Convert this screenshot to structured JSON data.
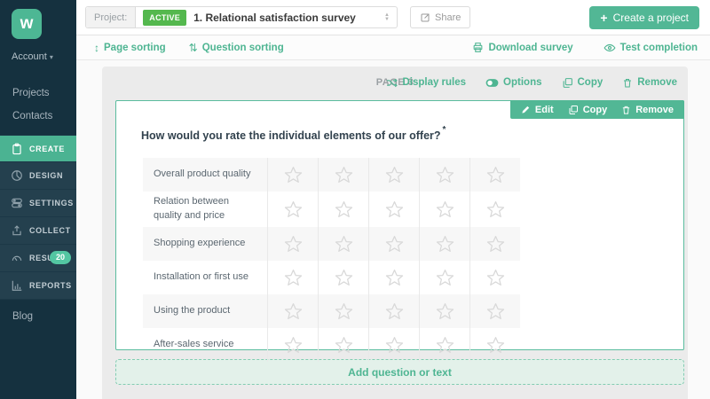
{
  "app": {
    "logo_letter": "w"
  },
  "sidebar": {
    "account_label": "Account",
    "plain_top": [
      {
        "label": "Projects"
      },
      {
        "label": "Contacts"
      }
    ],
    "menu_items": [
      {
        "label": "CREATE",
        "icon": "clipboard-icon",
        "active": true
      },
      {
        "label": "DESIGN",
        "icon": "palette-icon"
      },
      {
        "label": "SETTINGS",
        "icon": "toggles-icon"
      },
      {
        "label": "COLLECT",
        "icon": "upload-icon"
      },
      {
        "label": "RESULTS",
        "icon": "gauge-icon",
        "badge": "20"
      },
      {
        "label": "REPORTS",
        "icon": "bar-chart-icon"
      }
    ],
    "plain_bottom": [
      {
        "label": "Blog"
      }
    ]
  },
  "topbar": {
    "project_label": "Project:",
    "status_badge": "ACTIVE",
    "project_title": "1. Relational satisfaction survey",
    "share_label": "Share",
    "create_project_label": "Create a project",
    "create_project_plus": "+"
  },
  "toolbar": {
    "page_sorting": "Page sorting",
    "question_sorting": "Question sorting",
    "download_survey": "Download survey",
    "test_completion": "Test completion",
    "page_sort_glyph": "↕",
    "question_sort_glyph": "⇅"
  },
  "page": {
    "header": "PAGE 3",
    "actions": {
      "display_rules": "Display rules",
      "options": "Options",
      "copy": "Copy",
      "remove": "Remove"
    }
  },
  "question": {
    "toolbar": {
      "edit": "Edit",
      "copy": "Copy",
      "remove": "Remove"
    },
    "title": "How would you rate the individual elements of our offer?",
    "required_marker": "*",
    "matrix": {
      "rows": [
        "Overall product quality",
        "Relation between quality and price",
        "Shopping experience",
        "Installation or first use",
        "Using the product",
        "After-sales service"
      ],
      "columns": 5,
      "rating_icon": "star-icon"
    }
  },
  "footer": {
    "add_question_label": "Add question or text"
  },
  "colors": {
    "accent_teal": "#52b795",
    "active_green": "#54b84e",
    "sidebar_dark": "#15313f",
    "sidebar_menu_bg": "#24404e",
    "panel_gray": "#ebebeb",
    "card_border": "#5abc9e",
    "star_outline": "#d8d8d8"
  }
}
